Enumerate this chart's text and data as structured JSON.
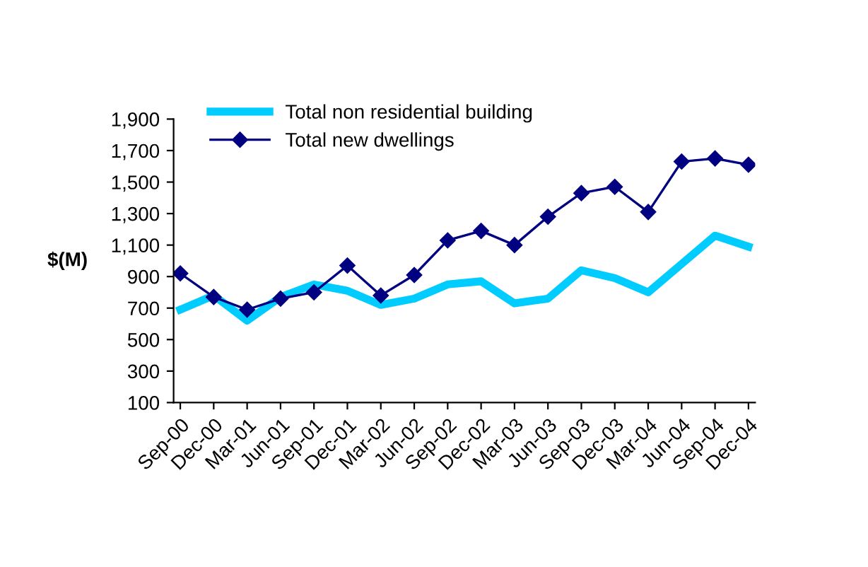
{
  "chart_data": {
    "type": "line",
    "ylabel": "$(M)",
    "categories": [
      "Sep-00",
      "Dec-00",
      "Mar-01",
      "Jun-01",
      "Sep-01",
      "Dec-01",
      "Mar-02",
      "Jun-02",
      "Sep-02",
      "Dec-02",
      "Mar-03",
      "Jun-03",
      "Sep-03",
      "Dec-03",
      "Mar-04",
      "Jun-04",
      "Sep-04",
      "Dec-04"
    ],
    "series": [
      {
        "name": "Total non residential building",
        "color": "#00ccff",
        "marker": "none",
        "values": [
          690,
          780,
          620,
          770,
          850,
          810,
          720,
          760,
          850,
          870,
          730,
          760,
          940,
          890,
          800,
          980,
          1160,
          1090
        ]
      },
      {
        "name": "Total new dwellings",
        "color": "#000080",
        "marker": "diamond",
        "values": [
          920,
          770,
          690,
          760,
          800,
          970,
          780,
          910,
          1130,
          1190,
          1100,
          1280,
          1430,
          1470,
          1310,
          1630,
          1650,
          1610
        ]
      }
    ],
    "ylim": [
      100,
      1900
    ],
    "yticks": [
      {
        "value": 100,
        "label": "100"
      },
      {
        "value": 300,
        "label": "300"
      },
      {
        "value": 500,
        "label": "500"
      },
      {
        "value": 700,
        "label": "700"
      },
      {
        "value": 900,
        "label": "900"
      },
      {
        "value": 1100,
        "label": "1,100"
      },
      {
        "value": 1300,
        "label": "1,300"
      },
      {
        "value": 1500,
        "label": "1,500"
      },
      {
        "value": 1700,
        "label": "1,700"
      },
      {
        "value": 1900,
        "label": "1,900"
      }
    ],
    "grid": false,
    "legend": "top left"
  }
}
